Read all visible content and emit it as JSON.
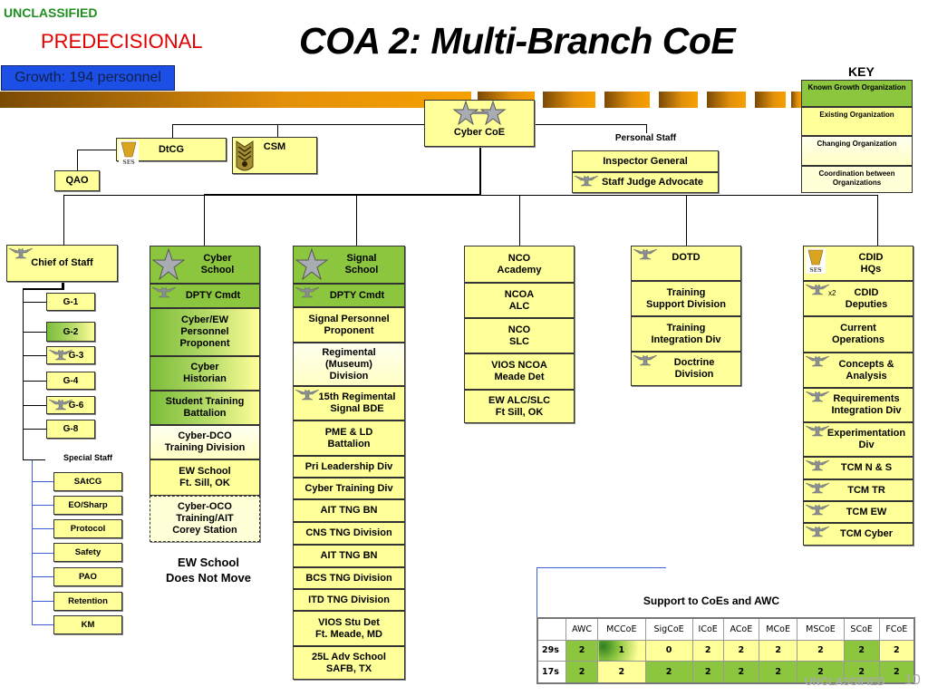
{
  "header": {
    "classification": "UNCLASSIFIED",
    "marking": "PREDECISIONAL",
    "title": "COA 2: Multi-Branch CoE",
    "growth": "Growth: 194 personnel"
  },
  "colors": {
    "known_growth": "#8cc63f",
    "existing": "#ffff99",
    "changing": "#ffffd0",
    "coordination": "#ffffd8",
    "growth_box": "#1c4fe6",
    "classification": "#1f8f1f",
    "predecisional": "#e00000"
  },
  "key": {
    "title": "KEY",
    "items": [
      {
        "label": "Known Growth Organization",
        "fill": "growth"
      },
      {
        "label": "Existing Organization",
        "fill": "existing"
      },
      {
        "label": "Changing Organization",
        "fill": "changing"
      },
      {
        "label": "Coordination between Organizations",
        "fill": "coord"
      }
    ]
  },
  "top": {
    "commander": {
      "label": "Cyber CoE",
      "icon": "two-star-icon"
    },
    "dtcg": {
      "label": "DtCG",
      "icon": "ses-icon"
    },
    "csm": {
      "label": "CSM",
      "icon": "csm-rank-icon"
    },
    "qao": {
      "label": "QAO"
    },
    "personal_staff_label": "Personal Staff",
    "personal_staff": [
      {
        "label": "Inspector General"
      },
      {
        "label": "Staff Judge Advocate",
        "icon": "eagle-icon"
      }
    ]
  },
  "chief_of_staff": {
    "label": "Chief of Staff",
    "icon": "eagle-icon",
    "g_staff": [
      {
        "label": "G-1",
        "fill": "existing"
      },
      {
        "label": "G-2",
        "fill": "growthgrad"
      },
      {
        "label": "G-3",
        "fill": "existing",
        "icon": "eagle-icon"
      },
      {
        "label": "G-4",
        "fill": "existing"
      },
      {
        "label": "G-6",
        "fill": "existing",
        "icon": "eagle-icon"
      },
      {
        "label": "G-8",
        "fill": "existing"
      }
    ],
    "special_staff_label": "Special Staff",
    "special_staff": [
      "SAtCG",
      "EO/Sharp",
      "Protocol",
      "Safety",
      "PAO",
      "Retention",
      "KM"
    ]
  },
  "columns": [
    {
      "id": "cyber",
      "items": [
        {
          "label": "Cyber\nSchool",
          "fill": "growth",
          "icon": "one-star-icon"
        },
        {
          "label": "DPTY Cmdt",
          "fill": "growth",
          "icon": "eagle-icon"
        },
        {
          "label": "Cyber/EW\nPersonnel\nProponent",
          "fill": "growthgrad"
        },
        {
          "label": "Cyber\nHistorian",
          "fill": "growthgrad"
        },
        {
          "label": "Student Training\nBattalion",
          "fill": "growthgrad"
        },
        {
          "label": "Cyber-DCO\nTraining  Division",
          "fill": "changing"
        },
        {
          "label": "EW  School\nFt. Sill, OK",
          "fill": "existing"
        },
        {
          "label": "Cyber-OCO\nTraining/AIT\nCorey Station",
          "fill": "coord"
        }
      ],
      "note": "EW  School\nDoes Not Move"
    },
    {
      "id": "signal",
      "items": [
        {
          "label": "Signal\nSchool",
          "fill": "growth",
          "icon": "one-star-icon"
        },
        {
          "label": "DPTY Cmdt",
          "fill": "growth",
          "icon": "eagle-icon"
        },
        {
          "label": "Signal Personnel\nProponent",
          "fill": "existing"
        },
        {
          "label": "Regimental\n(Museum)\nDivision",
          "fill": "changing"
        },
        {
          "label": "15th Regimental\nSignal BDE",
          "fill": "existing",
          "icon": "eagle-icon"
        },
        {
          "label": "PME & LD\nBattalion",
          "fill": "existing"
        },
        {
          "label": "Pri Leadership Div",
          "fill": "existing"
        },
        {
          "label": "Cyber Training Div",
          "fill": "existing"
        },
        {
          "label": "AIT TNG BN",
          "fill": "existing"
        },
        {
          "label": "CNS TNG Division",
          "fill": "existing"
        },
        {
          "label": "AIT TNG BN",
          "fill": "existing"
        },
        {
          "label": "BCS TNG Division",
          "fill": "existing"
        },
        {
          "label": "ITD TNG Division",
          "fill": "existing"
        },
        {
          "label": "VIOS Stu Det\nFt. Meade, MD",
          "fill": "existing"
        },
        {
          "label": "25L Adv School\nSAFB, TX",
          "fill": "existing"
        }
      ]
    },
    {
      "id": "nco",
      "items": [
        {
          "label": "NCO\nAcademy",
          "fill": "existing"
        },
        {
          "label": "NCOA\nALC",
          "fill": "existing"
        },
        {
          "label": "NCO\nSLC",
          "fill": "existing"
        },
        {
          "label": "VIOS NCOA\nMeade Det",
          "fill": "existing"
        },
        {
          "label": "EW ALC/SLC\nFt Sill, OK",
          "fill": "existing"
        }
      ]
    },
    {
      "id": "dotd",
      "items": [
        {
          "label": "DOTD",
          "fill": "existing",
          "icon": "eagle-icon"
        },
        {
          "label": "Training\nSupport Division",
          "fill": "existing"
        },
        {
          "label": "Training\nIntegration Div",
          "fill": "existing"
        },
        {
          "label": "Doctrine\nDivision",
          "fill": "existing",
          "icon": "eagle-icon"
        }
      ]
    },
    {
      "id": "cdid",
      "items": [
        {
          "label": "CDID\nHQs",
          "fill": "existing",
          "icon": "ses-icon"
        },
        {
          "label": "CDID\nDeputies",
          "fill": "existing",
          "icon": "eagle-icon",
          "badge": "x2"
        },
        {
          "label": "Current\nOperations",
          "fill": "existing"
        },
        {
          "label": "Concepts &\nAnalysis",
          "fill": "existing",
          "icon": "eagle-icon"
        },
        {
          "label": "Requirements\nIntegration Div",
          "fill": "existing",
          "icon": "eagle-icon"
        },
        {
          "label": "Experimentation\nDiv",
          "fill": "existing",
          "icon": "eagle-icon"
        },
        {
          "label": "TCM N & S",
          "fill": "existing",
          "icon": "eagle-icon"
        },
        {
          "label": "TCM TR",
          "fill": "existing",
          "icon": "eagle-icon"
        },
        {
          "label": "TCM EW",
          "fill": "existing",
          "icon": "eagle-icon"
        },
        {
          "label": "TCM Cyber",
          "fill": "existing",
          "icon": "eagle-icon"
        }
      ]
    }
  ],
  "support_table": {
    "title": "Support to CoEs and AWC",
    "headers": [
      "",
      "AWC",
      "MCCoE",
      "SigCoE",
      "ICoE",
      "ACoE",
      "MCoE",
      "MSCoE",
      "SCoE",
      "FCoE"
    ],
    "rows": [
      {
        "label": "29s",
        "values": [
          "2",
          "1",
          "0",
          "2",
          "2",
          "2",
          "2",
          "2",
          "2"
        ],
        "fills": [
          "growth",
          "mixgrad",
          "existing",
          "existing",
          "existing",
          "existing",
          "existing",
          "growth",
          "existing"
        ]
      },
      {
        "label": "17s",
        "values": [
          "2",
          "2",
          "2",
          "2",
          "2",
          "2",
          "2",
          "2",
          "2"
        ],
        "fills": [
          "growth",
          "existing",
          "growth",
          "growth",
          "growth",
          "growth",
          "growth",
          "growth",
          "growth"
        ]
      }
    ]
  },
  "footer": {
    "classification": "UNCLASSIFIED",
    "page": "10"
  }
}
